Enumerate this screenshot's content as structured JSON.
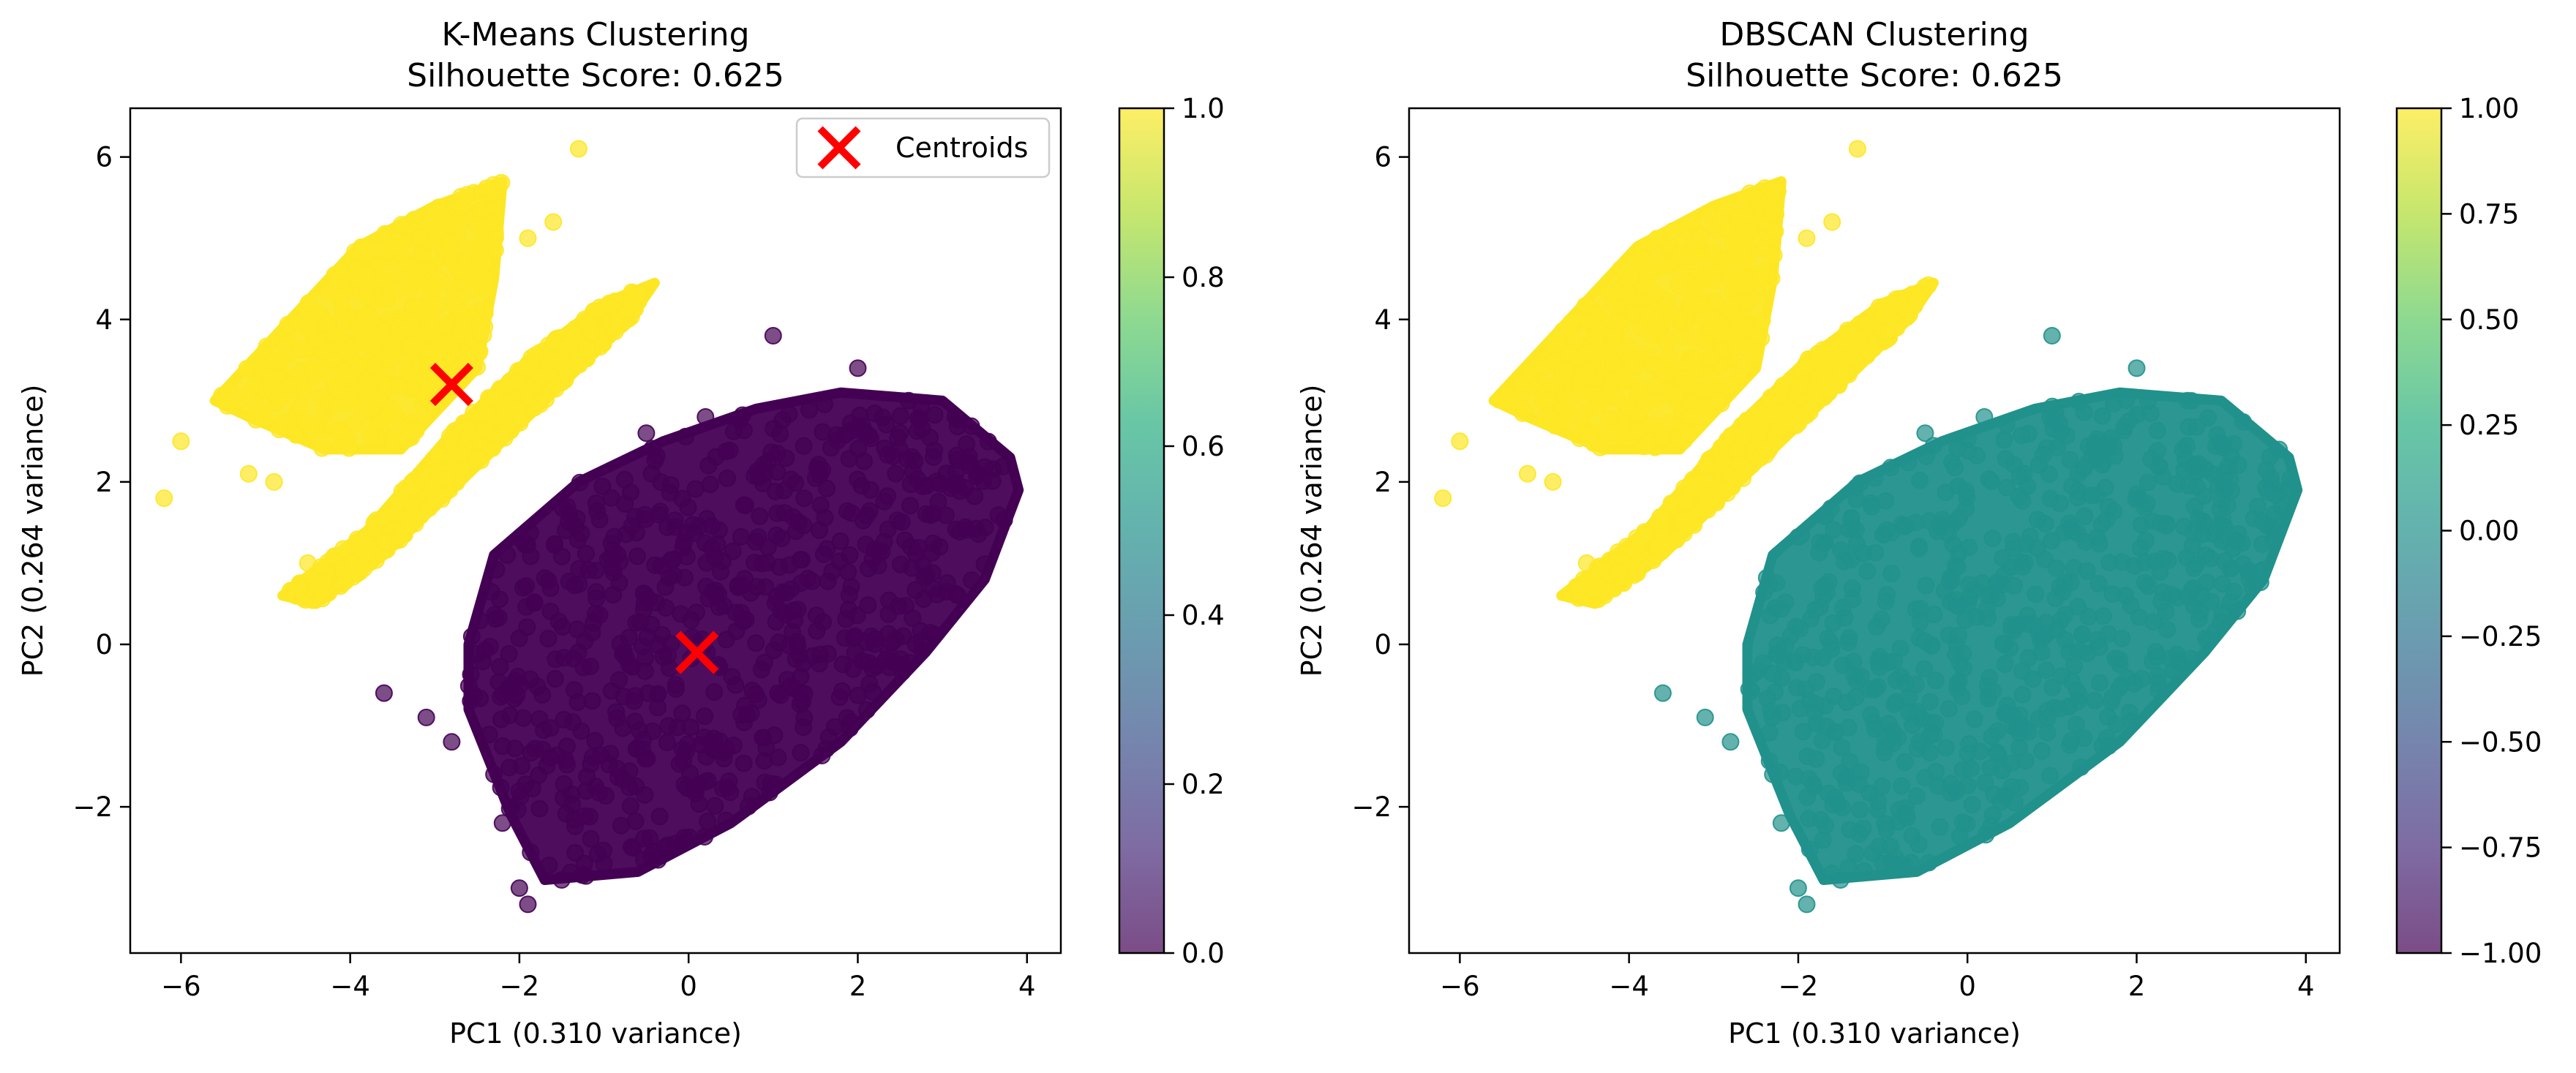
{
  "chart_data": [
    {
      "type": "scatter",
      "title": "K-Means Clustering",
      "subtitle": "Silhouette Score: 0.625",
      "xlabel": "PC1 (0.310 variance)",
      "ylabel": "PC2 (0.264 variance)",
      "xlim": [
        -6.6,
        4.4
      ],
      "ylim": [
        -3.8,
        6.6
      ],
      "xticks": [
        -6,
        -4,
        -2,
        0,
        2,
        4
      ],
      "yticks": [
        -2,
        0,
        2,
        4,
        6
      ],
      "x_tick_labels": [
        "−6",
        "−4",
        "−2",
        "0",
        "2",
        "4"
      ],
      "y_tick_labels": [
        "−2",
        "0",
        "2",
        "4",
        "6"
      ],
      "grid": false,
      "colormap": "viridis",
      "point_alpha": 0.7,
      "clusters": [
        {
          "label_value": 1.0,
          "color": "#fde725",
          "shapes": [
            {
              "polygon": [
                [
                  -5.6,
                  3.0
                ],
                [
                  -3.9,
                  4.9
                ],
                [
                  -3.0,
                  5.4
                ],
                [
                  -2.2,
                  5.7
                ],
                [
                  -2.3,
                  4.5
                ],
                [
                  -2.5,
                  3.4
                ],
                [
                  -3.4,
                  2.4
                ],
                [
                  -4.3,
                  2.4
                ],
                [
                  -5.2,
                  2.8
                ]
              ]
            },
            {
              "polygon": [
                [
                  -4.8,
                  0.6
                ],
                [
                  -3.8,
                  1.4
                ],
                [
                  -2.8,
                  2.6
                ],
                [
                  -1.9,
                  3.5
                ],
                [
                  -1.0,
                  4.2
                ],
                [
                  -0.4,
                  4.45
                ],
                [
                  -0.7,
                  4.0
                ],
                [
                  -1.7,
                  3.0
                ],
                [
                  -2.7,
                  2.0
                ],
                [
                  -3.6,
                  1.1
                ],
                [
                  -4.4,
                  0.5
                ]
              ]
            }
          ],
          "outliers": [
            [
              -6.2,
              1.8
            ],
            [
              -6.0,
              2.5
            ],
            [
              -5.2,
              2.1
            ],
            [
              -4.9,
              2.0
            ],
            [
              -1.3,
              6.1
            ],
            [
              -1.6,
              5.2
            ],
            [
              -1.9,
              5.0
            ],
            [
              -4.5,
              1.0
            ],
            [
              -4.6,
              0.7
            ]
          ]
        },
        {
          "label_value": 0.0,
          "color": "#440154",
          "shapes": [
            {
              "polygon": [
                [
                  -2.6,
                  -0.8
                ],
                [
                  -2.1,
                  -2.1
                ],
                [
                  -1.7,
                  -2.9
                ],
                [
                  -0.6,
                  -2.8
                ],
                [
                  0.5,
                  -2.2
                ],
                [
                  1.8,
                  -1.2
                ],
                [
                  2.8,
                  -0.1
                ],
                [
                  3.5,
                  0.8
                ],
                [
                  3.9,
                  1.9
                ],
                [
                  3.8,
                  2.3
                ],
                [
                  3.0,
                  3.0
                ],
                [
                  1.8,
                  3.1
                ],
                [
                  0.8,
                  2.9
                ],
                [
                  -0.3,
                  2.5
                ],
                [
                  -1.3,
                  2.0
                ],
                [
                  -2.3,
                  1.1
                ],
                [
                  -2.6,
                  0.0
                ]
              ]
            }
          ],
          "outliers": [
            [
              1.0,
              3.8
            ],
            [
              2.0,
              3.4
            ],
            [
              -2.2,
              -2.2
            ],
            [
              -2.3,
              -1.6
            ],
            [
              -3.6,
              -0.6
            ],
            [
              -3.1,
              -0.9
            ],
            [
              -2.8,
              -1.2
            ],
            [
              -2.0,
              -3.0
            ],
            [
              -1.9,
              -3.2
            ],
            [
              -1.5,
              -2.9
            ],
            [
              -1.0,
              -2.7
            ],
            [
              -0.5,
              2.6
            ],
            [
              0.2,
              2.8
            ],
            [
              2.6,
              3.0
            ]
          ]
        }
      ],
      "centroids": [
        [
          -2.8,
          3.2
        ],
        [
          0.1,
          -0.1
        ]
      ],
      "centroid_color": "#ff0000",
      "legend": {
        "entries": [
          "Centroids"
        ],
        "placement": "upper-right"
      },
      "colorbar": {
        "range": [
          0.0,
          1.0
        ],
        "ticks": [
          0.0,
          0.2,
          0.4,
          0.6,
          0.8,
          1.0
        ],
        "tick_labels": [
          "0.0",
          "0.2",
          "0.4",
          "0.6",
          "0.8",
          "1.0"
        ]
      }
    },
    {
      "type": "scatter",
      "title": "DBSCAN Clustering",
      "subtitle": "Silhouette Score: 0.625",
      "xlabel": "PC1 (0.310 variance)",
      "ylabel": "PC2 (0.264 variance)",
      "xlim": [
        -6.6,
        4.4
      ],
      "ylim": [
        -3.8,
        6.6
      ],
      "xticks": [
        -6,
        -4,
        -2,
        0,
        2,
        4
      ],
      "yticks": [
        -2,
        0,
        2,
        4,
        6
      ],
      "x_tick_labels": [
        "−6",
        "−4",
        "−2",
        "0",
        "2",
        "4"
      ],
      "y_tick_labels": [
        "−2",
        "0",
        "2",
        "4",
        "6"
      ],
      "grid": false,
      "colormap": "viridis",
      "point_alpha": 0.7,
      "clusters": [
        {
          "label_value": 1.0,
          "color": "#fde725",
          "shapes": [
            {
              "polygon": [
                [
                  -5.6,
                  3.0
                ],
                [
                  -3.9,
                  4.9
                ],
                [
                  -3.0,
                  5.4
                ],
                [
                  -2.2,
                  5.7
                ],
                [
                  -2.3,
                  4.5
                ],
                [
                  -2.5,
                  3.4
                ],
                [
                  -3.4,
                  2.4
                ],
                [
                  -4.3,
                  2.4
                ],
                [
                  -5.2,
                  2.8
                ]
              ]
            },
            {
              "polygon": [
                [
                  -4.8,
                  0.6
                ],
                [
                  -3.8,
                  1.4
                ],
                [
                  -2.8,
                  2.6
                ],
                [
                  -1.9,
                  3.5
                ],
                [
                  -1.0,
                  4.2
                ],
                [
                  -0.4,
                  4.45
                ],
                [
                  -0.7,
                  4.0
                ],
                [
                  -1.7,
                  3.0
                ],
                [
                  -2.7,
                  2.0
                ],
                [
                  -3.6,
                  1.1
                ],
                [
                  -4.4,
                  0.5
                ]
              ]
            }
          ],
          "outliers": [
            [
              -6.2,
              1.8
            ],
            [
              -6.0,
              2.5
            ],
            [
              -5.2,
              2.1
            ],
            [
              -4.9,
              2.0
            ],
            [
              -1.3,
              6.1
            ],
            [
              -1.6,
              5.2
            ],
            [
              -1.9,
              5.0
            ],
            [
              -4.5,
              1.0
            ],
            [
              -4.6,
              0.7
            ]
          ]
        },
        {
          "label_value": 0.0,
          "color": "#21918c",
          "shapes": [
            {
              "polygon": [
                [
                  -2.6,
                  -0.8
                ],
                [
                  -2.1,
                  -2.1
                ],
                [
                  -1.7,
                  -2.9
                ],
                [
                  -0.6,
                  -2.8
                ],
                [
                  0.5,
                  -2.2
                ],
                [
                  1.8,
                  -1.2
                ],
                [
                  2.8,
                  -0.1
                ],
                [
                  3.5,
                  0.8
                ],
                [
                  3.9,
                  1.9
                ],
                [
                  3.8,
                  2.3
                ],
                [
                  3.0,
                  3.0
                ],
                [
                  1.8,
                  3.1
                ],
                [
                  0.8,
                  2.9
                ],
                [
                  -0.3,
                  2.5
                ],
                [
                  -1.3,
                  2.0
                ],
                [
                  -2.3,
                  1.1
                ],
                [
                  -2.6,
                  0.0
                ]
              ]
            }
          ],
          "outliers": [
            [
              1.0,
              3.8
            ],
            [
              2.0,
              3.4
            ],
            [
              -2.2,
              -2.2
            ],
            [
              -2.3,
              -1.6
            ],
            [
              -3.6,
              -0.6
            ],
            [
              -3.1,
              -0.9
            ],
            [
              -2.8,
              -1.2
            ],
            [
              -2.0,
              -3.0
            ],
            [
              -1.9,
              -3.2
            ],
            [
              -1.5,
              -2.9
            ],
            [
              -1.0,
              -2.7
            ],
            [
              -0.5,
              2.6
            ],
            [
              0.2,
              2.8
            ],
            [
              2.6,
              3.0
            ]
          ]
        }
      ],
      "centroids": [],
      "legend": null,
      "colorbar": {
        "range": [
          -1.0,
          1.0
        ],
        "ticks": [
          -1.0,
          -0.75,
          -0.5,
          -0.25,
          0.0,
          0.25,
          0.5,
          0.75,
          1.0
        ],
        "tick_labels": [
          "−1.00",
          "−0.75",
          "−0.50",
          "−0.25",
          "0.00",
          "0.25",
          "0.50",
          "0.75",
          "1.00"
        ]
      }
    }
  ]
}
